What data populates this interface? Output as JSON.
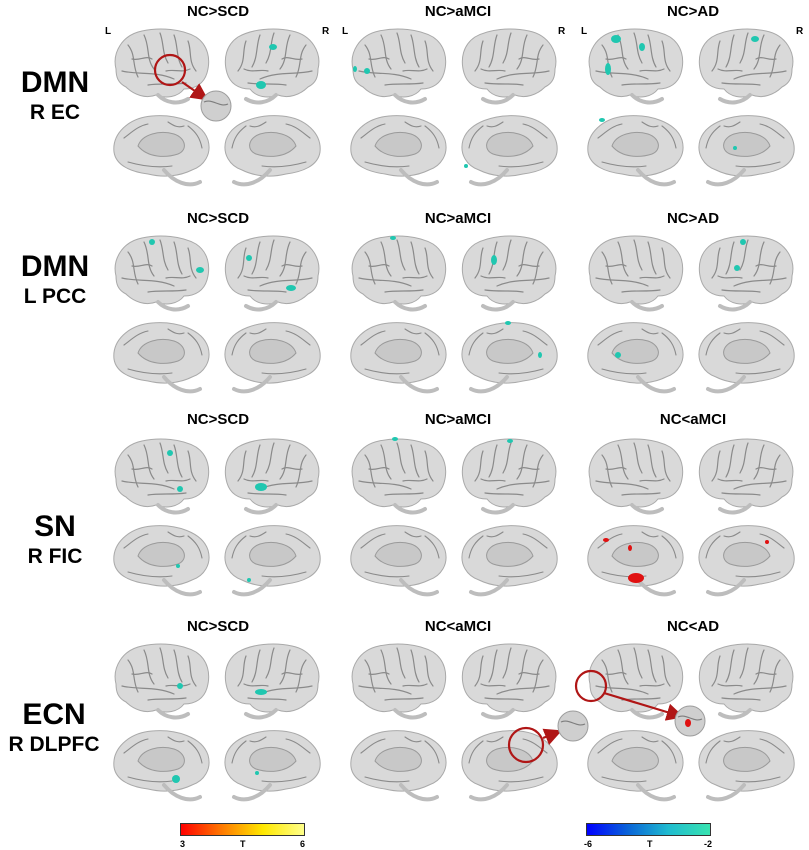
{
  "rows": [
    {
      "network": "DMN",
      "seed": "R EC",
      "titles": [
        "NC>SCD",
        "NC>aMCI",
        "NC>AD"
      ]
    },
    {
      "network": "DMN",
      "seed": "L PCC",
      "titles": [
        "NC>SCD",
        "NC>aMCI",
        "NC>AD"
      ]
    },
    {
      "network": "SN",
      "seed": "R FIC",
      "titles": [
        "NC>SCD",
        "NC>aMCI",
        "NC<aMCI"
      ]
    },
    {
      "network": "ECN",
      "seed": "R DLPFC",
      "titles": [
        "NC>SCD",
        "NC<aMCI",
        "NC<AD"
      ]
    }
  ],
  "hemisphere_labels": {
    "left": "L",
    "right": "R"
  },
  "colorbars": {
    "positive": {
      "min": "3",
      "label": "T",
      "max": "6",
      "colors": [
        "#ff0000",
        "#ff7a00",
        "#ffe800",
        "#ffff8a"
      ]
    },
    "negative": {
      "min": "-6",
      "label": "T",
      "max": "-2",
      "colors": [
        "#0000ff",
        "#0a64d8",
        "#20bccf",
        "#38e3b0"
      ]
    }
  },
  "colors": {
    "brain": "#d9d9d9",
    "sulcus": "#8a8a8a",
    "highlight": "#b01616",
    "cyan": "#20c7b0",
    "red": "#e01010"
  }
}
